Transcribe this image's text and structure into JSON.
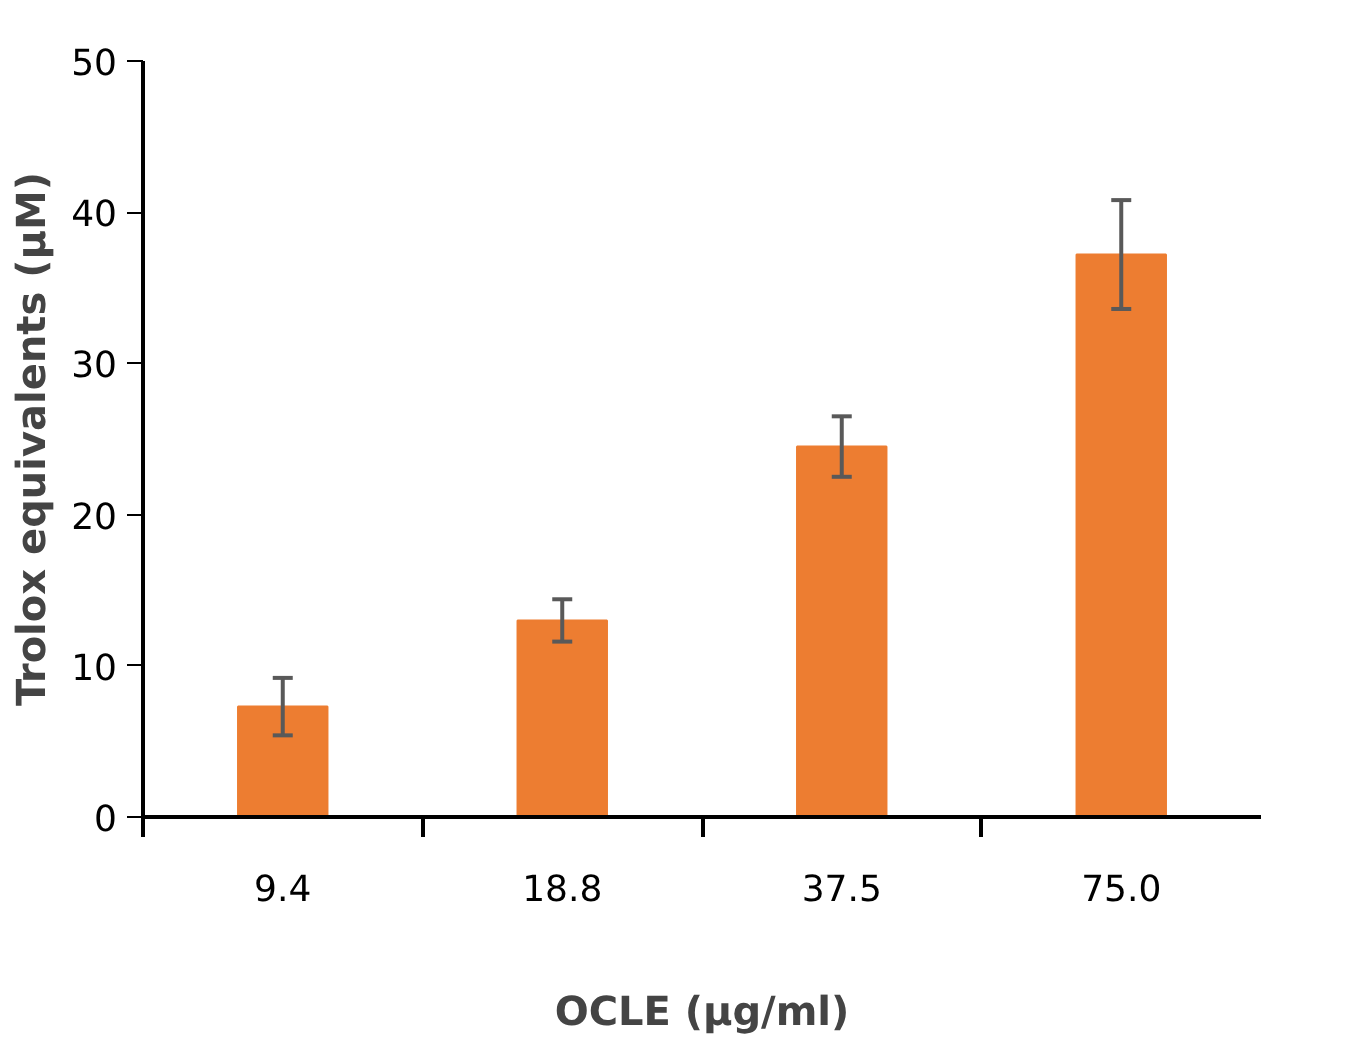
{
  "chart_data": {
    "type": "bar",
    "xlabel": "OCLE (µg/ml)",
    "ylabel": "Trolox equivalents (µM)",
    "categories": [
      "9.4",
      "18.8",
      "37.5",
      "75.0"
    ],
    "series": [
      {
        "color": "#ed7d31",
        "values": [
          7.3,
          13.0,
          24.5,
          37.2
        ],
        "errors": [
          1.9,
          1.4,
          2.0,
          3.6
        ]
      }
    ],
    "ylim": [
      0,
      50
    ],
    "yticks": [
      0,
      10,
      20,
      30,
      40,
      50
    ],
    "grid": false
  }
}
